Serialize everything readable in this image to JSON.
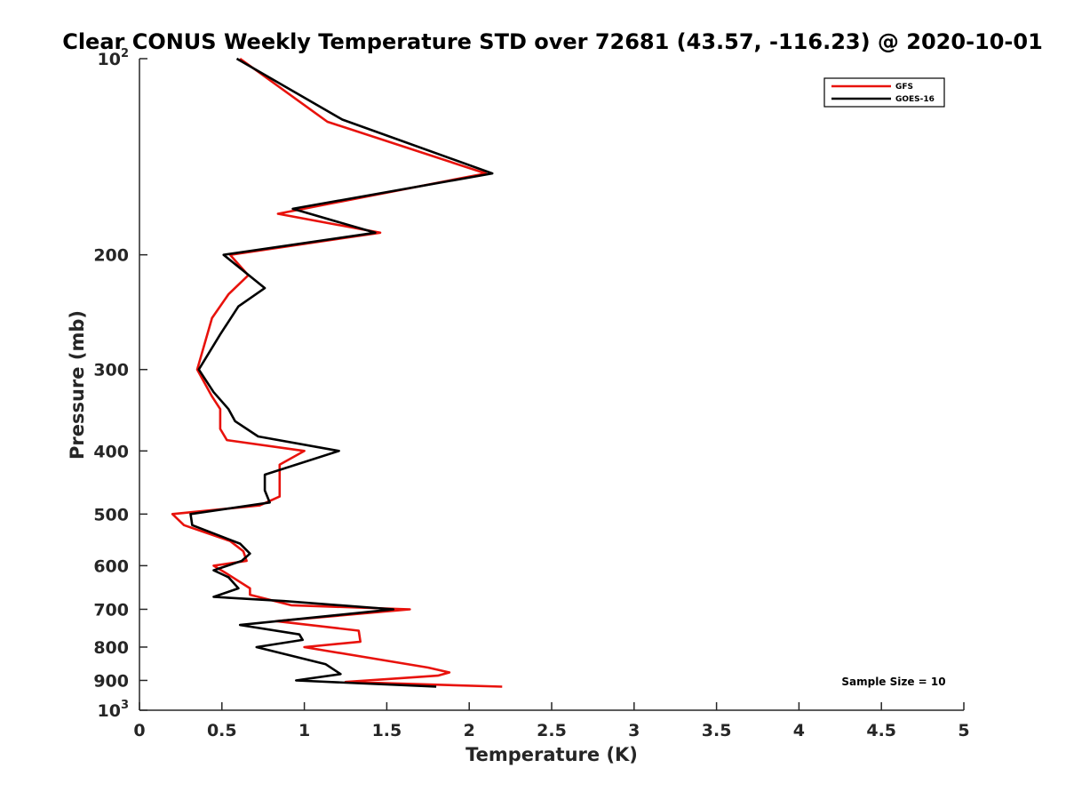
{
  "chart_data": {
    "type": "line",
    "title": "Clear CONUS Weekly Temperature STD over 72681 (43.57, -116.23) @ 2020-10-01",
    "xlabel": "Temperature (K)",
    "ylabel": "Pressure (mb)",
    "xlim": [
      0,
      5
    ],
    "ylim": [
      100,
      1000
    ],
    "y_scale": "log",
    "y_reversed": true,
    "grid": false,
    "legend_position": "top-right",
    "x_ticks": [
      {
        "value": 0,
        "label": "0"
      },
      {
        "value": 0.5,
        "label": "0.5"
      },
      {
        "value": 1,
        "label": "1"
      },
      {
        "value": 1.5,
        "label": "1.5"
      },
      {
        "value": 2,
        "label": "2"
      },
      {
        "value": 2.5,
        "label": "2.5"
      },
      {
        "value": 3,
        "label": "3"
      },
      {
        "value": 3.5,
        "label": "3.5"
      },
      {
        "value": 4,
        "label": "4"
      },
      {
        "value": 4.5,
        "label": "4.5"
      },
      {
        "value": 5,
        "label": "5"
      }
    ],
    "y_ticks": [
      {
        "value": 100,
        "base": "10",
        "exp": "2"
      },
      {
        "value": 200,
        "label": "200"
      },
      {
        "value": 300,
        "label": "300"
      },
      {
        "value": 400,
        "label": "400"
      },
      {
        "value": 500,
        "label": "500"
      },
      {
        "value": 600,
        "label": "600"
      },
      {
        "value": 700,
        "label": "700"
      },
      {
        "value": 800,
        "label": "800"
      },
      {
        "value": 900,
        "label": "900"
      },
      {
        "value": 1000,
        "base": "10",
        "exp": "3"
      }
    ],
    "series": [
      {
        "name": "GFS",
        "color": "#e8120c",
        "points": [
          [
            0.61,
            100
          ],
          [
            1.14,
            125
          ],
          [
            2.1,
            150
          ],
          [
            0.84,
            173
          ],
          [
            1.46,
            185
          ],
          [
            0.55,
            200
          ],
          [
            0.66,
            215
          ],
          [
            0.54,
            230
          ],
          [
            0.44,
            250
          ],
          [
            0.35,
            300
          ],
          [
            0.44,
            330
          ],
          [
            0.49,
            345
          ],
          [
            0.49,
            370
          ],
          [
            0.53,
            385
          ],
          [
            1.0,
            400
          ],
          [
            0.85,
            420
          ],
          [
            0.85,
            470
          ],
          [
            0.73,
            485
          ],
          [
            0.2,
            500
          ],
          [
            0.27,
            520
          ],
          [
            0.55,
            550
          ],
          [
            0.63,
            570
          ],
          [
            0.65,
            590
          ],
          [
            0.45,
            600
          ],
          [
            0.52,
            615
          ],
          [
            0.67,
            650
          ],
          [
            0.67,
            665
          ],
          [
            0.92,
            690
          ],
          [
            1.64,
            700
          ],
          [
            0.83,
            730
          ],
          [
            1.33,
            755
          ],
          [
            1.34,
            785
          ],
          [
            1.0,
            800
          ],
          [
            1.75,
            860
          ],
          [
            1.88,
            875
          ],
          [
            1.81,
            885
          ],
          [
            1.25,
            905
          ],
          [
            2.2,
            920
          ]
        ]
      },
      {
        "name": "GOES-16",
        "color": "#000000",
        "points": [
          [
            0.59,
            100
          ],
          [
            1.23,
            124
          ],
          [
            2.14,
            150
          ],
          [
            0.93,
            170
          ],
          [
            1.43,
            185
          ],
          [
            0.51,
            200
          ],
          [
            0.76,
            225
          ],
          [
            0.6,
            240
          ],
          [
            0.49,
            265
          ],
          [
            0.36,
            300
          ],
          [
            0.45,
            325
          ],
          [
            0.54,
            345
          ],
          [
            0.58,
            360
          ],
          [
            0.72,
            380
          ],
          [
            1.21,
            400
          ],
          [
            0.76,
            435
          ],
          [
            0.76,
            460
          ],
          [
            0.79,
            480
          ],
          [
            0.31,
            500
          ],
          [
            0.32,
            520
          ],
          [
            0.61,
            555
          ],
          [
            0.67,
            575
          ],
          [
            0.62,
            590
          ],
          [
            0.45,
            610
          ],
          [
            0.54,
            625
          ],
          [
            0.6,
            650
          ],
          [
            0.45,
            670
          ],
          [
            0.88,
            680
          ],
          [
            1.54,
            700
          ],
          [
            0.61,
            740
          ],
          [
            0.97,
            765
          ],
          [
            0.99,
            780
          ],
          [
            0.71,
            800
          ],
          [
            1.13,
            850
          ],
          [
            1.22,
            880
          ],
          [
            0.95,
            900
          ],
          [
            1.8,
            920
          ]
        ]
      }
    ],
    "legend": [
      {
        "name": "GFS",
        "color": "#e8120c"
      },
      {
        "name": "GOES-16",
        "color": "#000000"
      }
    ],
    "annotation": "Sample Size = 10"
  }
}
